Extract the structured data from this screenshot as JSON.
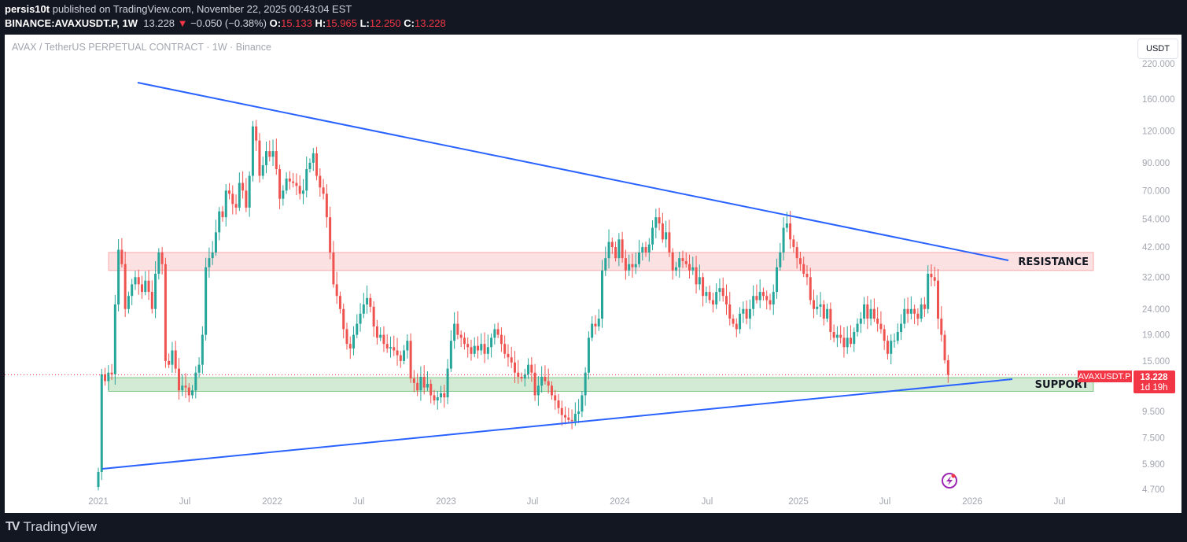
{
  "header": {
    "author": "persis10t",
    "published": "published on TradingView.com, November 22, 2025 00:43:04 EST",
    "symbol": "BINANCE:AVAXUSDT.P, 1W",
    "last": "13.228",
    "change": "−0.050 (−0.38%)",
    "o_label": "O:",
    "o": "15.133",
    "h_label": "H:",
    "h": "15.965",
    "l_label": "L:",
    "l": "12.250",
    "c_label": "C:",
    "c": "13.228"
  },
  "chart_title": "AVAX / TetherUS PERPETUAL CONTRACT · 1W · Binance",
  "currency_button": "USDT",
  "footer": {
    "brand": "TradingView"
  },
  "colors": {
    "up": "#26a69a",
    "down": "#ef5350",
    "trendline": "#2962ff",
    "resistance": "#f7a9ad",
    "support": "#81c784",
    "accent": "#f23645"
  },
  "annotations": {
    "resistance_label": "RESISTANCE",
    "support_label": "SUPPORT"
  },
  "price_badge": {
    "symbol": "AVAXUSDT.P",
    "price": "13.228",
    "countdown": "1d 19h"
  },
  "chart_data": {
    "type": "candlestick",
    "title": "AVAX / TetherUS PERPETUAL CONTRACT · 1W · Binance",
    "scale": "log",
    "ylim": [
      4.7,
      220
    ],
    "y_ticks": [
      "220.000",
      "160.000",
      "120.000",
      "90.000",
      "70.000",
      "54.000",
      "42.000",
      "32.000",
      "24.000",
      "19.000",
      "15.000",
      "9.500",
      "7.500",
      "5.900",
      "4.700"
    ],
    "x_ticks": [
      "2021",
      "Jul",
      "2022",
      "Jul",
      "2023",
      "Jul",
      "2024",
      "Jul",
      "2025",
      "Jul",
      "2026",
      "Jul"
    ],
    "start": "2021-01-04",
    "interval": "1W",
    "weekly_closes": [
      5.5,
      13.3,
      12.5,
      13.5,
      13.3,
      25,
      41,
      36,
      24,
      27,
      30,
      32,
      30,
      28,
      31,
      28,
      24,
      33,
      40,
      36,
      15,
      14.5,
      16.5,
      14,
      11.5,
      12,
      11.8,
      11,
      11.5,
      13.5,
      14.5,
      19,
      35,
      38,
      40,
      48,
      58,
      55,
      70,
      68,
      62,
      60,
      75,
      70,
      60,
      80,
      125,
      110,
      80,
      88,
      100,
      95,
      100,
      85,
      65,
      70,
      78,
      76,
      75,
      73,
      68,
      70,
      85,
      90,
      98,
      80,
      72,
      68,
      55,
      40,
      30,
      27,
      24,
      20,
      17.5,
      16.8,
      19,
      21,
      23,
      25,
      26.5,
      24.5,
      20.5,
      18.5,
      19,
      17.5,
      16.8,
      17,
      16.5,
      15.8,
      15,
      16.5,
      18,
      12.8,
      12.3,
      11.5,
      13,
      11.8,
      12.2,
      11,
      10.5,
      10.8,
      11.2,
      10.8,
      14,
      18,
      21,
      19,
      18.5,
      17.5,
      17,
      16,
      17.2,
      16.5,
      17.5,
      16,
      17,
      18.5,
      20,
      19,
      17.5,
      16,
      15.5,
      14.8,
      13.5,
      13,
      12.8,
      13.3,
      14.5,
      13.5,
      11,
      12,
      13,
      12.5,
      12,
      11,
      10.5,
      9.8,
      9.2,
      9,
      8.8,
      8.7,
      9.3,
      9.5,
      11,
      13.5,
      18.5,
      21,
      20.5,
      22,
      34,
      38,
      44,
      42,
      38,
      45,
      38,
      34,
      36,
      35,
      36,
      40,
      42,
      40,
      43,
      50,
      55,
      52,
      45,
      48,
      40,
      34,
      35,
      38,
      37,
      36,
      34,
      35,
      30,
      32,
      27,
      28,
      26,
      25,
      28,
      29,
      27,
      25,
      22,
      21,
      20,
      23,
      24,
      22,
      24,
      27,
      26,
      28,
      27,
      26,
      25,
      28,
      35,
      40,
      50,
      52,
      45,
      42,
      38,
      36,
      33,
      32,
      26,
      24,
      24.5,
      25,
      22,
      24,
      19.5,
      18.5,
      19,
      18.5,
      17,
      18.5,
      17.5,
      19.5,
      21,
      22,
      25,
      22,
      24,
      22,
      21,
      20,
      18,
      16,
      18,
      18,
      19.5,
      21,
      24,
      23,
      24,
      23,
      22,
      25,
      24,
      33,
      32,
      31,
      22,
      19,
      15.1,
      13.228
    ],
    "last_price": 13.228,
    "zones": [
      {
        "name": "RESISTANCE",
        "low": 34,
        "high": 40
      },
      {
        "name": "SUPPORT",
        "low": 11.4,
        "high": 12.9
      }
    ],
    "trendlines": [
      {
        "name": "descending resistance",
        "from": [
          "2021-03",
          190
        ],
        "to": [
          "2026-04",
          37
        ]
      },
      {
        "name": "ascending support",
        "from": [
          "2021-01",
          5.7
        ],
        "to": [
          "2026-04",
          12.9
        ]
      }
    ]
  }
}
